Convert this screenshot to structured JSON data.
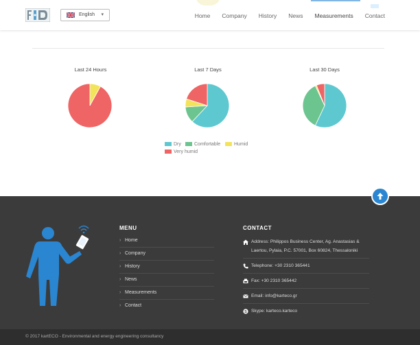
{
  "header": {
    "language": "English",
    "nav": [
      "Home",
      "Company",
      "History",
      "News",
      "Measurements",
      "Contact"
    ],
    "active_nav_index": 4
  },
  "charts_section": {
    "legend": [
      {
        "label": "Dry",
        "color": "#5ec8d0"
      },
      {
        "label": "Comfortable",
        "color": "#6cc48f"
      },
      {
        "label": "Humid",
        "color": "#f3e35a"
      },
      {
        "label": "Very humid",
        "color": "#ef6464"
      }
    ]
  },
  "chart_data": [
    {
      "type": "pie",
      "title": "Last 24 Hours",
      "categories": [
        "Dry",
        "Comfortable",
        "Humid",
        "Very humid"
      ],
      "values": [
        0,
        0,
        8,
        92
      ]
    },
    {
      "type": "pie",
      "title": "Last 7 Days",
      "categories": [
        "Dry",
        "Comfortable",
        "Humid",
        "Very humid"
      ],
      "values": [
        62,
        12,
        6,
        20
      ]
    },
    {
      "type": "pie",
      "title": "Last 30 Days",
      "categories": [
        "Dry",
        "Comfortable",
        "Humid",
        "Very humid"
      ],
      "values": [
        57,
        36,
        1,
        6
      ]
    }
  ],
  "footer": {
    "menu_title": "MENU",
    "menu_items": [
      "Home",
      "Company",
      "History",
      "News",
      "Measurements",
      "Contact"
    ],
    "contact_title": "CONTACT",
    "contact_items": [
      {
        "icon": "home-icon",
        "text": "Address: Philippos Business Center, Ag. Anastasias & Laertou, Pylaia, P.C. 57001, Box 60824, Thessaloniki"
      },
      {
        "icon": "phone-icon",
        "text": "Telephone: +30 2310 365441"
      },
      {
        "icon": "fax-icon",
        "text": "Fax: +30 2310 365442"
      },
      {
        "icon": "envelope-icon",
        "text": "Email: info@karteco.gr"
      },
      {
        "icon": "skype-icon",
        "text": "Skype: karteco.karteco"
      }
    ],
    "copyright": "© 2017 kartECO - Environmental and energy engineering consultancy"
  },
  "colors": {
    "accent": "#2a86d1",
    "footer_bg": "#3b3b3b",
    "copy_bg": "#2e2e2e"
  }
}
